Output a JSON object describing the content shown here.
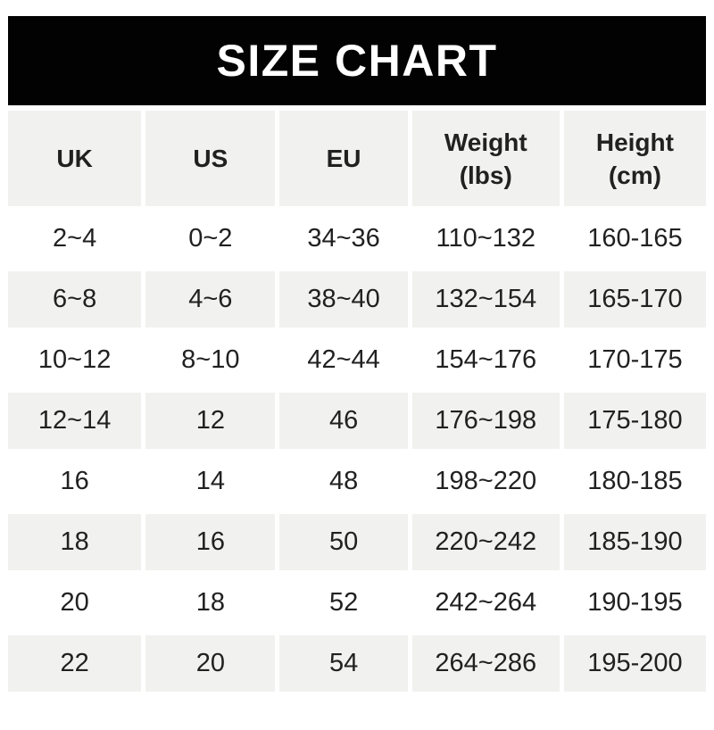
{
  "banner": {
    "title": "SIZE CHART",
    "bg_color": "#020202",
    "text_color": "#ffffff"
  },
  "table": {
    "header": [
      {
        "key": "uk",
        "lines": [
          "UK"
        ]
      },
      {
        "key": "us",
        "lines": [
          "US"
        ]
      },
      {
        "key": "eu",
        "lines": [
          "EU"
        ]
      },
      {
        "key": "weight",
        "lines": [
          "Weight",
          "(lbs)"
        ]
      },
      {
        "key": "height",
        "lines": [
          "Height",
          "(cm)"
        ]
      }
    ],
    "alt_row_bg": "#f1f1ef",
    "text_color": "#212121"
  },
  "chart_data": {
    "type": "table",
    "title": "SIZE CHART",
    "columns": [
      "UK",
      "US",
      "EU",
      "Weight (lbs)",
      "Height (cm)"
    ],
    "rows": [
      [
        "2~4",
        "0~2",
        "34~36",
        "110~132",
        "160-165"
      ],
      [
        "6~8",
        "4~6",
        "38~40",
        "132~154",
        "165-170"
      ],
      [
        "10~12",
        "8~10",
        "42~44",
        "154~176",
        "170-175"
      ],
      [
        "12~14",
        "12",
        "46",
        "176~198",
        "175-180"
      ],
      [
        "16",
        "14",
        "48",
        "198~220",
        "180-185"
      ],
      [
        "18",
        "16",
        "50",
        "220~242",
        "185-190"
      ],
      [
        "20",
        "18",
        "52",
        "242~264",
        "190-195"
      ],
      [
        "22",
        "20",
        "54",
        "264~286",
        "195-200"
      ]
    ]
  }
}
